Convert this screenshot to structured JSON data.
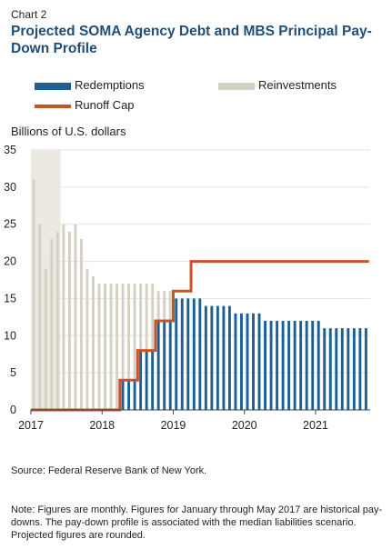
{
  "header": {
    "chart_label": "Chart 2",
    "title": "Projected SOMA Agency Debt and MBS Principal Pay-Down Profile"
  },
  "legend": [
    {
      "name": "Redemptions",
      "color": "#1a5f96",
      "kind": "bar"
    },
    {
      "name": "Reinvestments",
      "color": "#d4d1c3",
      "kind": "bar"
    },
    {
      "name": "Runoff Cap",
      "color": "#c8532b",
      "kind": "line"
    }
  ],
  "footer": {
    "source": "Source: Federal Reserve Bank of New York.",
    "note": "Note: Figures are monthly. Figures for January through May 2017 are historical pay-downs. The pay-down profile is associated with the median liabilities scenario. Projected figures are rounded."
  },
  "chart_data": {
    "type": "bar",
    "title": "Projected SOMA Agency Debt and MBS Principal Pay-Down Profile",
    "ylabel": "Billions of U.S. dollars",
    "xlabel": "",
    "ylim": [
      0,
      35
    ],
    "yticks": [
      "0",
      "5",
      "10",
      "15",
      "20",
      "25",
      "30",
      "35"
    ],
    "xticks": [
      "2017",
      "2018",
      "2019",
      "2020",
      "2021"
    ],
    "x_start_year": 2017,
    "n_months": 57,
    "shaded_months": [
      0,
      4
    ],
    "series": [
      {
        "name": "Redemptions",
        "color": "#1a5f96",
        "values": [
          0,
          0,
          0,
          0,
          0,
          0,
          0,
          0,
          0,
          0,
          0,
          0,
          0,
          0,
          0,
          4,
          4,
          4,
          8,
          8,
          8,
          12,
          12,
          12,
          15,
          15,
          15,
          15,
          15,
          14,
          14,
          14,
          14,
          14,
          13,
          13,
          13,
          13,
          13,
          12,
          12,
          12,
          12,
          12,
          12,
          12,
          12,
          12,
          12,
          11,
          11,
          11,
          11,
          11,
          11,
          11,
          11
        ]
      },
      {
        "name": "Reinvestments",
        "color": "#d4d1c3",
        "values": [
          31,
          25,
          19,
          23,
          24,
          25,
          24,
          25,
          23,
          19,
          18,
          17,
          17,
          17,
          17,
          13,
          13,
          13,
          9,
          9,
          9,
          4,
          4,
          4,
          0,
          0,
          0,
          0,
          0,
          0,
          0,
          0,
          0,
          0,
          0,
          0,
          0,
          0,
          0,
          0,
          0,
          0,
          0,
          0,
          0,
          0,
          0,
          0,
          0,
          0,
          0,
          0,
          0,
          0,
          0,
          0,
          0
        ]
      },
      {
        "name": "Runoff Cap",
        "color": "#c8532b",
        "values": [
          0,
          0,
          0,
          0,
          0,
          0,
          0,
          0,
          0,
          0,
          0,
          0,
          0,
          0,
          0,
          4,
          4,
          4,
          8,
          8,
          8,
          12,
          12,
          12,
          16,
          16,
          16,
          20,
          20,
          20,
          20,
          20,
          20,
          20,
          20,
          20,
          20,
          20,
          20,
          20,
          20,
          20,
          20,
          20,
          20,
          20,
          20,
          20,
          20,
          20,
          20,
          20,
          20,
          20,
          20,
          20,
          20
        ]
      }
    ],
    "grid": true,
    "legend_position": "top"
  }
}
